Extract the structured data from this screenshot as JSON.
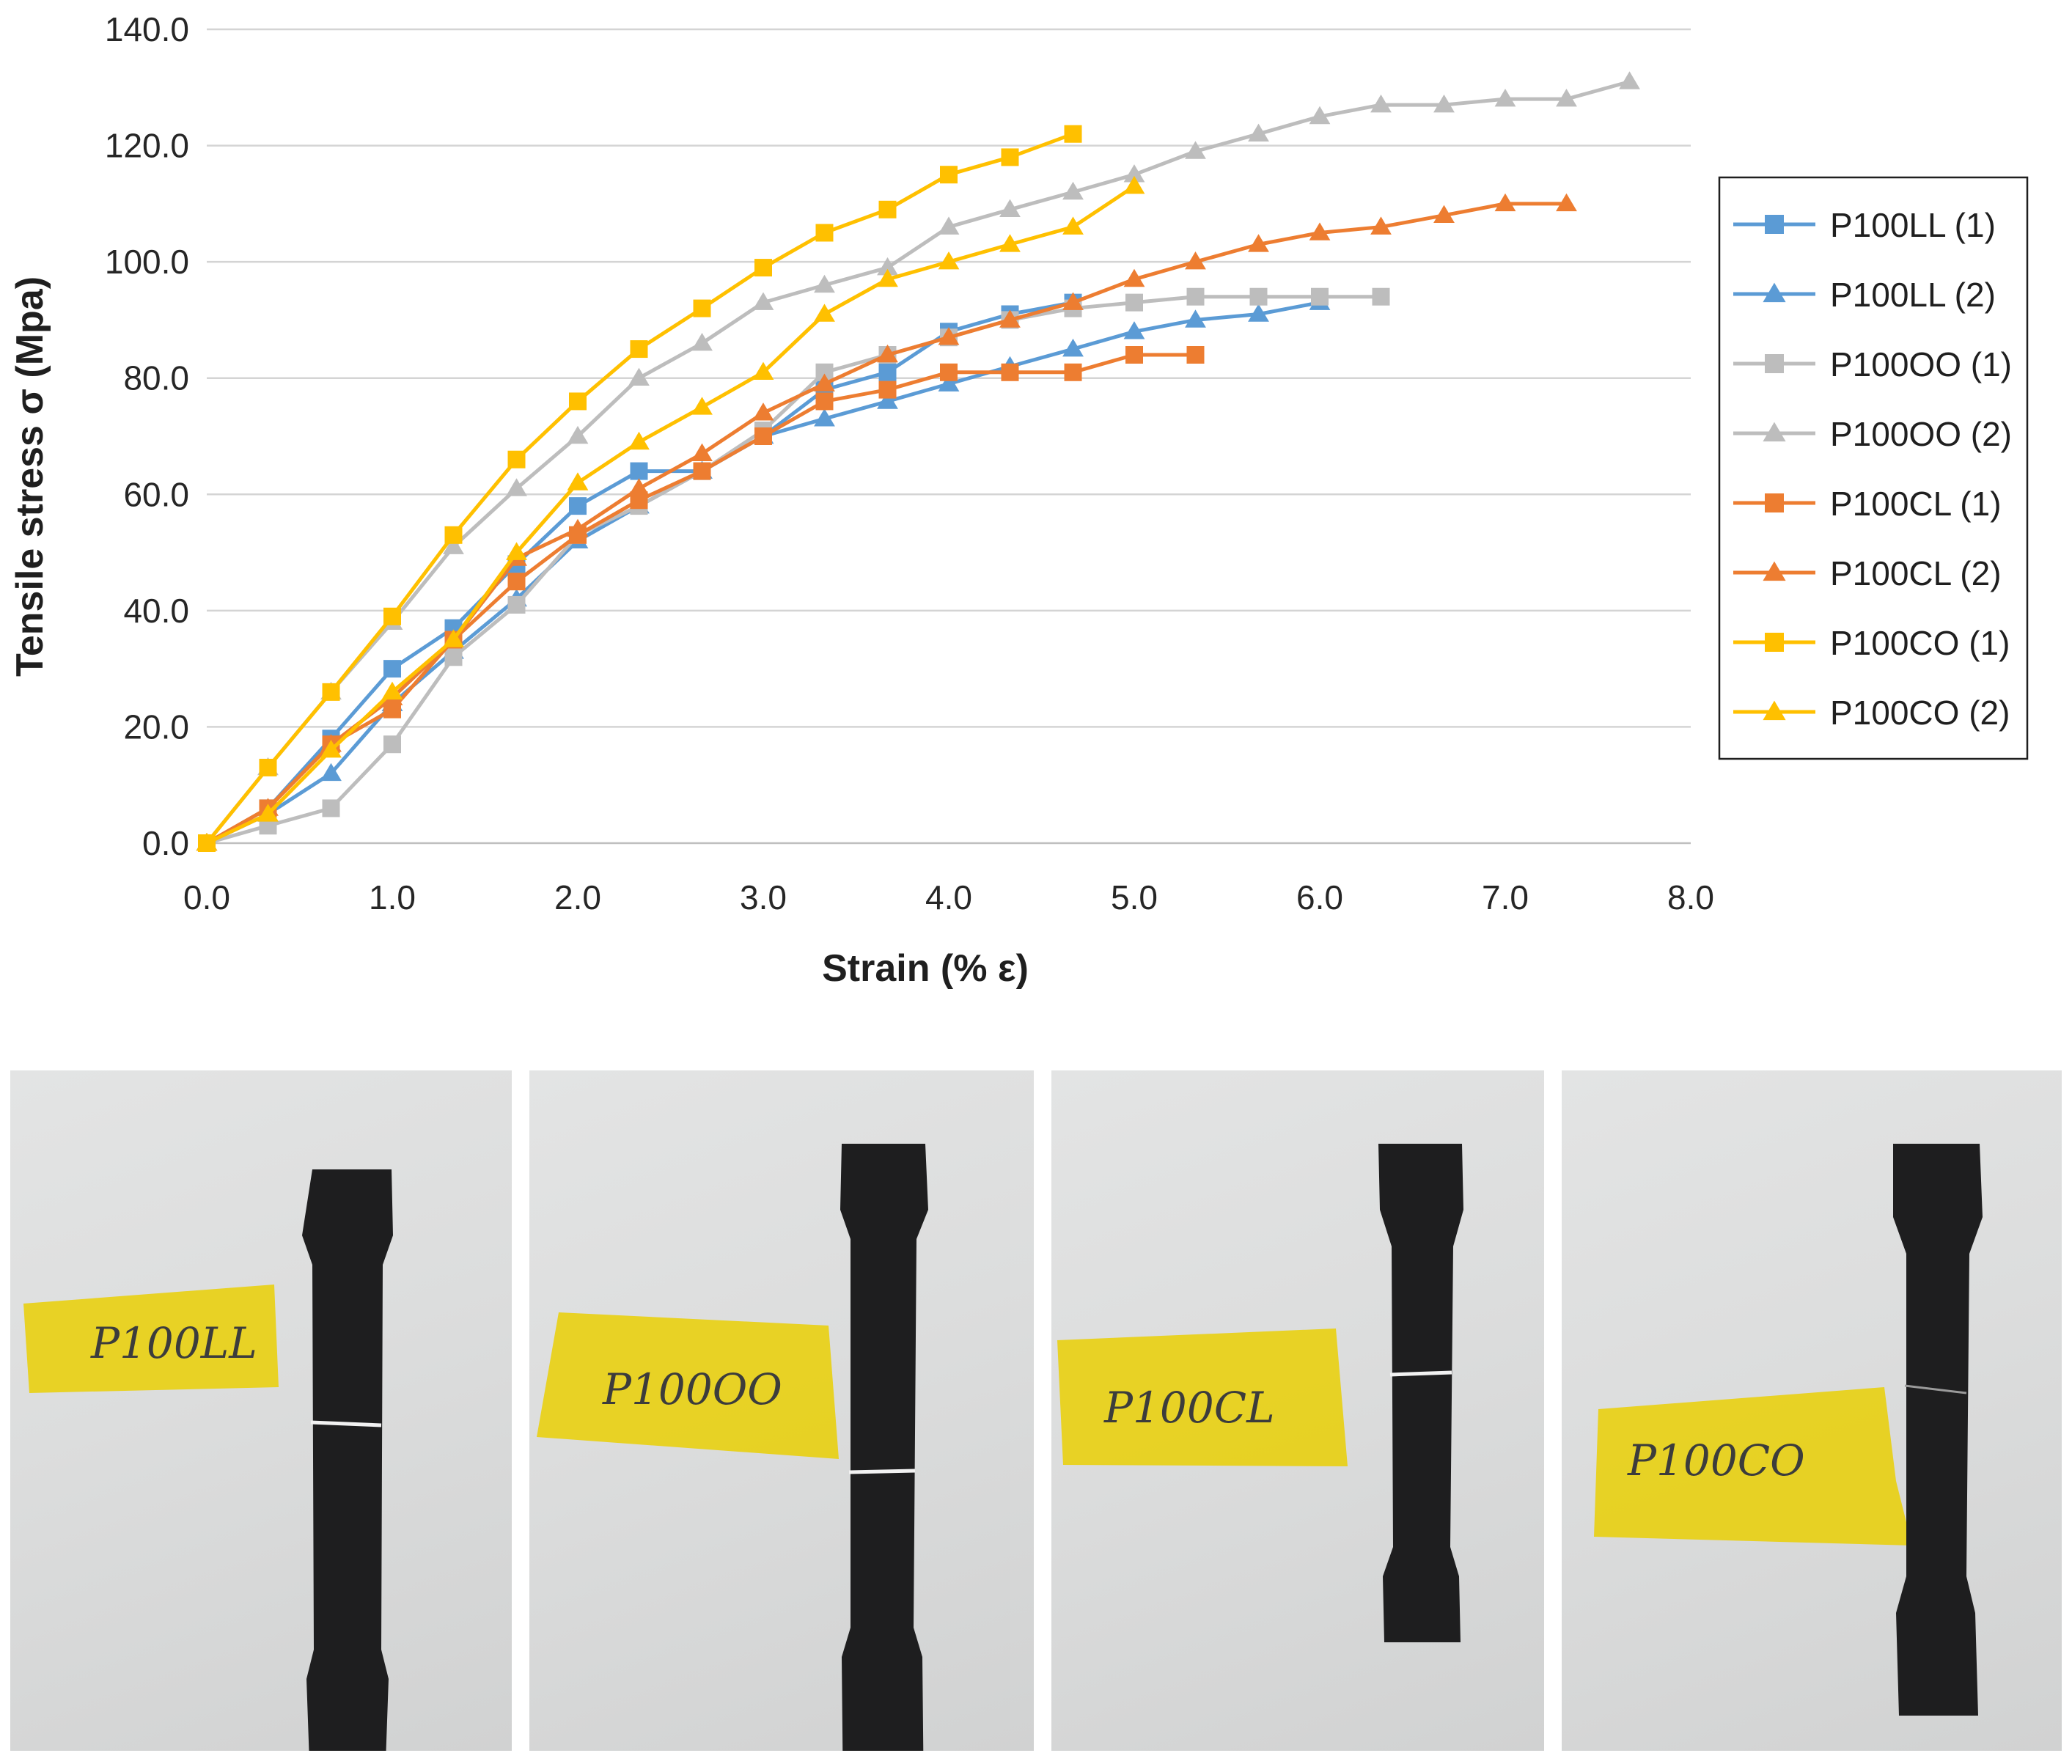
{
  "chart_data": {
    "type": "line",
    "xlabel": "Strain (% ε)",
    "ylabel": "Tensile stress σ (Mpa)",
    "xlim": [
      0,
      8
    ],
    "ylim": [
      0,
      140
    ],
    "x_ticks": [
      "0.0",
      "1.0",
      "2.0",
      "3.0",
      "4.0",
      "5.0",
      "6.0",
      "7.0",
      "8.0"
    ],
    "y_ticks": [
      "0.0",
      "20.0",
      "40.0",
      "60.0",
      "80.0",
      "100.0",
      "120.0",
      "140.0"
    ],
    "grid": "horizontal",
    "legend_position": "right",
    "series": [
      {
        "name": "P100LL (1)",
        "color": "#5b9bd5",
        "marker": "square",
        "x": [
          0,
          0.33,
          0.67,
          1.0,
          1.33,
          1.67,
          2.0,
          2.33,
          2.67,
          3.0,
          3.33,
          3.67,
          4.0,
          4.33,
          4.67
        ],
        "y": [
          0,
          6,
          18,
          30,
          37,
          48,
          58,
          64,
          64,
          70,
          78,
          81,
          88,
          91,
          93
        ]
      },
      {
        "name": "P100LL (2)",
        "color": "#5b9bd5",
        "marker": "triangle",
        "x": [
          0,
          0.33,
          0.67,
          1.0,
          1.33,
          1.67,
          2.0,
          2.33,
          2.67,
          3.0,
          3.33,
          3.67,
          4.0,
          4.33,
          4.67,
          5.0,
          5.33,
          5.67,
          6.0
        ],
        "y": [
          0,
          5,
          12,
          24,
          33,
          42,
          52,
          58,
          64,
          70,
          73,
          76,
          79,
          82,
          85,
          88,
          90,
          91,
          93
        ]
      },
      {
        "name": "P100OO (1)",
        "color": "#bdbdbd",
        "marker": "square",
        "x": [
          0,
          0.33,
          0.67,
          1.0,
          1.33,
          1.67,
          2.0,
          2.33,
          2.67,
          3.0,
          3.33,
          3.67,
          4.0,
          4.33,
          4.67,
          5.0,
          5.33,
          5.67,
          6.0,
          6.33
        ],
        "y": [
          0,
          3,
          6,
          17,
          32,
          41,
          53,
          58,
          64,
          71,
          81,
          84,
          87,
          90,
          92,
          93,
          94,
          94,
          94,
          94
        ]
      },
      {
        "name": "P100OO (2)",
        "color": "#bdbdbd",
        "marker": "triangle",
        "x": [
          0,
          0.33,
          0.67,
          1.0,
          1.33,
          1.67,
          2.0,
          2.33,
          2.67,
          3.0,
          3.33,
          3.67,
          4.0,
          4.33,
          4.67,
          5.0,
          5.33,
          5.67,
          6.0,
          6.33,
          6.67,
          7.0,
          7.33,
          7.67
        ],
        "y": [
          0,
          13,
          26,
          38,
          51,
          61,
          70,
          80,
          86,
          93,
          96,
          99,
          106,
          109,
          112,
          115,
          119,
          122,
          125,
          127,
          127,
          128,
          128,
          131
        ]
      },
      {
        "name": "P100CL (1)",
        "color": "#ed7d31",
        "marker": "square",
        "x": [
          0,
          0.33,
          0.67,
          1.0,
          1.33,
          1.67,
          2.0,
          2.33,
          2.67,
          3.0,
          3.33,
          3.67,
          4.0,
          4.33,
          4.67,
          5.0,
          5.33
        ],
        "y": [
          0,
          6,
          17,
          23,
          35,
          45,
          53,
          59,
          64,
          70,
          76,
          78,
          81,
          81,
          81,
          84,
          84
        ]
      },
      {
        "name": "P100CL (2)",
        "color": "#ed7d31",
        "marker": "triangle",
        "x": [
          0,
          0.33,
          0.67,
          1.0,
          1.33,
          1.67,
          2.0,
          2.33,
          2.67,
          3.0,
          3.33,
          3.67,
          4.0,
          4.33,
          4.67,
          5.0,
          5.33,
          5.67,
          6.0,
          6.33,
          6.67,
          7.0,
          7.33
        ],
        "y": [
          0,
          6,
          17,
          25,
          35,
          49,
          54,
          61,
          67,
          74,
          79,
          84,
          87,
          90,
          93,
          97,
          100,
          103,
          105,
          106,
          108,
          110,
          110
        ]
      },
      {
        "name": "P100CO (1)",
        "color": "#ffc000",
        "marker": "square",
        "x": [
          0,
          0.33,
          0.67,
          1.0,
          1.33,
          1.67,
          2.0,
          2.33,
          2.67,
          3.0,
          3.33,
          3.67,
          4.0,
          4.33,
          4.67
        ],
        "y": [
          0,
          13,
          26,
          39,
          53,
          66,
          76,
          85,
          92,
          99,
          105,
          109,
          115,
          118,
          122
        ]
      },
      {
        "name": "P100CO (2)",
        "color": "#ffc000",
        "marker": "triangle",
        "x": [
          0,
          0.33,
          0.67,
          1.0,
          1.33,
          1.67,
          2.0,
          2.33,
          2.67,
          3.0,
          3.33,
          3.67,
          4.0,
          4.33,
          4.67,
          5.0
        ],
        "y": [
          0,
          5,
          16,
          26,
          35,
          50,
          62,
          69,
          75,
          81,
          91,
          97,
          100,
          103,
          106,
          113
        ]
      }
    ]
  },
  "photos": [
    {
      "tape_label": "P100LL"
    },
    {
      "tape_label": "P100OO"
    },
    {
      "tape_label": "P100CL"
    },
    {
      "tape_label": "P100CO"
    }
  ]
}
